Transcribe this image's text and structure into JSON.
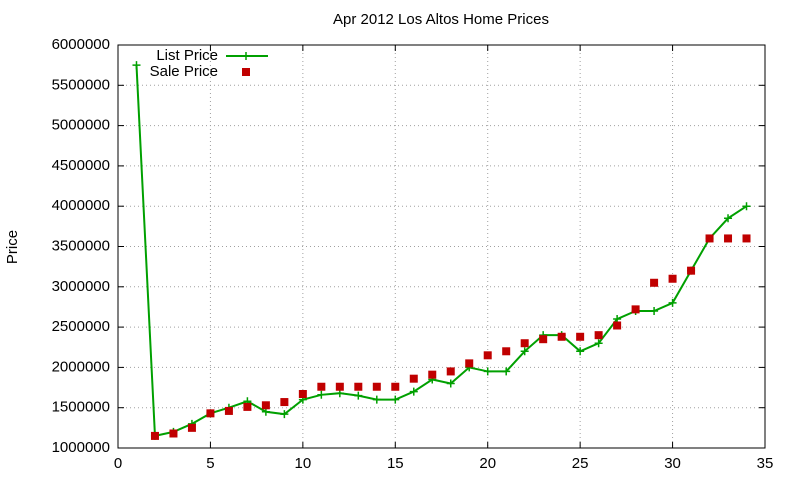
{
  "chart_data": {
    "type": "line",
    "title": "Apr 2012 Los Altos Home Prices",
    "y_label": "Price",
    "x": [
      1,
      2,
      3,
      4,
      5,
      6,
      7,
      8,
      9,
      10,
      11,
      12,
      13,
      14,
      15,
      16,
      17,
      18,
      19,
      20,
      21,
      22,
      23,
      24,
      25,
      26,
      27,
      28,
      29,
      30,
      31,
      32,
      33,
      34
    ],
    "series": [
      {
        "name": "List Price",
        "color": "#00a000",
        "style": "linespoints",
        "values": [
          5750000,
          1150000,
          1200000,
          1300000,
          1430000,
          1500000,
          1580000,
          1450000,
          1420000,
          1600000,
          1660000,
          1680000,
          1650000,
          1600000,
          1600000,
          1700000,
          1850000,
          1800000,
          2000000,
          1950000,
          1950000,
          2200000,
          2400000,
          2400000,
          2200000,
          2300000,
          2600000,
          2700000,
          2700000,
          2800000,
          3200000,
          3600000,
          3850000,
          4000000
        ]
      },
      {
        "name": "Sale Price",
        "color": "#c00000",
        "style": "points",
        "values": [
          null,
          1150000,
          1180000,
          1250000,
          1430000,
          1460000,
          1510000,
          1530000,
          1570000,
          1670000,
          1760000,
          1760000,
          1760000,
          1760000,
          1760000,
          1860000,
          1910000,
          1950000,
          2050000,
          2150000,
          2200000,
          2300000,
          2350000,
          2380000,
          2380000,
          2400000,
          2520000,
          2720000,
          3050000,
          3100000,
          3200000,
          3600000,
          3600000,
          3600000
        ]
      }
    ],
    "xlim": [
      0,
      35
    ],
    "xticks": [
      0,
      5,
      10,
      15,
      20,
      25,
      30,
      35
    ],
    "ylim": [
      1000000,
      6000000
    ],
    "yticks": [
      1000000,
      1500000,
      2000000,
      2500000,
      3000000,
      3500000,
      4000000,
      4500000,
      5000000,
      5500000,
      6000000
    ],
    "grid": true,
    "legend": "top-left"
  }
}
